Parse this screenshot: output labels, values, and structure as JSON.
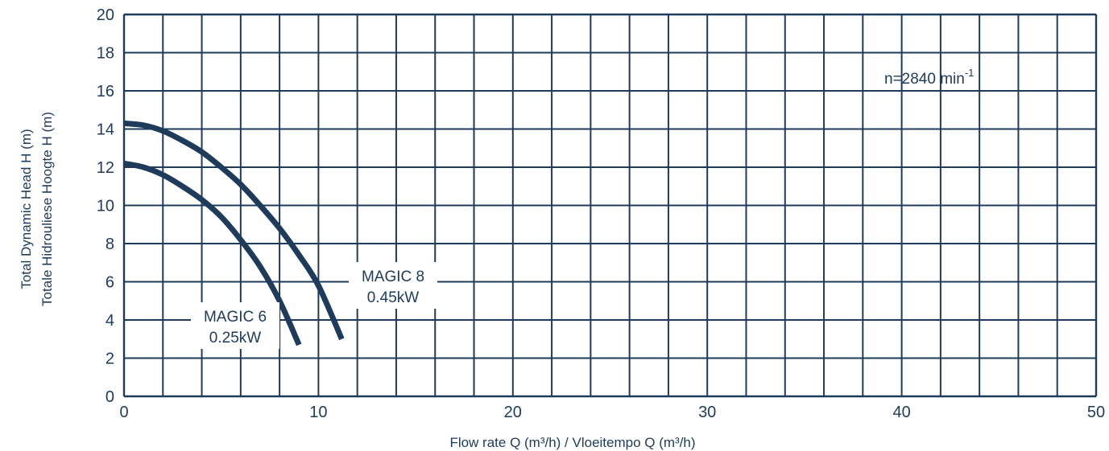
{
  "chart_data": {
    "type": "line",
    "xlabel": "Flow rate Q (m³/h) / Vloeitempo Q (m³/h)",
    "ylabel_line1": "Total Dynamic Head H (m)",
    "ylabel_line2": "Totale Hidrouliese Hoogte H (m)",
    "xlim": [
      0,
      50
    ],
    "ylim": [
      0,
      20
    ],
    "x_ticks": [
      0,
      10,
      20,
      30,
      40,
      50
    ],
    "y_ticks": [
      0,
      2,
      4,
      6,
      8,
      10,
      12,
      14,
      16,
      18,
      20
    ],
    "grid": true,
    "annotation": {
      "base": "n=2840 min",
      "sup": "-1"
    },
    "colors": {
      "line": "#1f3b5c",
      "grid": "#1f3b5c"
    },
    "series": [
      {
        "name": "MAGIC 6",
        "sublabel": "0.25kW",
        "x": [
          0,
          1,
          2,
          3,
          4,
          5,
          6,
          7,
          8,
          9
        ],
        "y": [
          12.2,
          12.0,
          11.6,
          11.0,
          10.3,
          9.4,
          8.2,
          6.8,
          5.0,
          2.7
        ]
      },
      {
        "name": "MAGIC 8",
        "sublabel": "0.45kW",
        "x": [
          0,
          1,
          2,
          3,
          4,
          5,
          6,
          7,
          8,
          9,
          10,
          11.2
        ],
        "y": [
          14.3,
          14.2,
          13.9,
          13.4,
          12.8,
          12.0,
          11.1,
          10.0,
          8.8,
          7.4,
          5.8,
          3.0
        ]
      }
    ]
  }
}
